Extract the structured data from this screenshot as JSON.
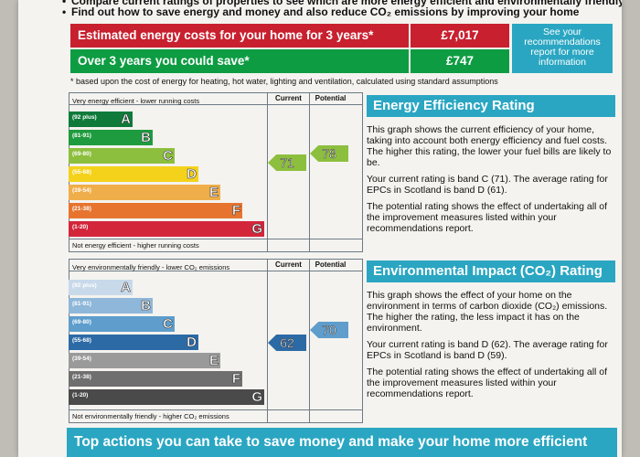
{
  "intro": {
    "line1": "Compare current ratings of properties to see which are more energy efficient and environmentally friendly",
    "line2": "Find out how to save energy and money and also reduce CO₂ emissions by improving your home"
  },
  "costs": {
    "estimated_label": "Estimated energy costs for your home for 3 years*",
    "estimated_value": "£7,017",
    "save_label": "Over 3 years you could save*",
    "save_value": "£747",
    "see_recommendations": "See your recommendations report for more information",
    "footnote": "* based upon the cost of energy for heating, hot water, lighting and ventilation, calculated using standard assumptions"
  },
  "energy_chart": {
    "top_label": "Very energy efficient - lower running costs",
    "bottom_label": "Not energy efficient - higher running costs",
    "current_header": "Current",
    "potential_header": "Potential",
    "bands": [
      {
        "range": "(92 plus)",
        "letter": "A",
        "color": "#0f7a3a"
      },
      {
        "range": "(81-91)",
        "letter": "B",
        "color": "#1f9b3f"
      },
      {
        "range": "(69-80)",
        "letter": "C",
        "color": "#8dbf3e"
      },
      {
        "range": "(55-68)",
        "letter": "D",
        "color": "#f4d21b"
      },
      {
        "range": "(39-54)",
        "letter": "E",
        "color": "#f0ae4a"
      },
      {
        "range": "(21-38)",
        "letter": "F",
        "color": "#e7742e"
      },
      {
        "range": "(1-20)",
        "letter": "G",
        "color": "#d3263a"
      }
    ],
    "current": "71",
    "potential": "78",
    "current_color": "#8dbf3e",
    "potential_color": "#8dbf3e"
  },
  "env_chart": {
    "top_label": "Very environmentally friendly - lower CO₂ emissions",
    "bottom_label": "Not environmentally friendly - higher CO₂ emissions",
    "current_header": "Current",
    "potential_header": "Potential",
    "bands": [
      {
        "range": "(92 plus)",
        "letter": "A",
        "color": "#c8d9ea"
      },
      {
        "range": "(81-91)",
        "letter": "B",
        "color": "#8fb7d9"
      },
      {
        "range": "(69-80)",
        "letter": "C",
        "color": "#5e9dcc"
      },
      {
        "range": "(55-68)",
        "letter": "D",
        "color": "#2c6aa6"
      },
      {
        "range": "(39-54)",
        "letter": "E",
        "color": "#9a9a9a"
      },
      {
        "range": "(21-38)",
        "letter": "F",
        "color": "#6f6f6f"
      },
      {
        "range": "(1-20)",
        "letter": "G",
        "color": "#4a4a4a"
      }
    ],
    "current": "62",
    "potential": "70",
    "current_color": "#2c6aa6",
    "potential_color": "#5e9dcc"
  },
  "eer_panel": {
    "title": "Energy Efficiency Rating",
    "p1": "This graph shows the current efficiency of your home, taking into account both energy efficiency and fuel costs. The higher this rating, the lower your fuel bills are likely to be.",
    "p2": "Your current rating is band C (71). The average rating for EPCs in Scotland is band D (61).",
    "p3": "The potential rating shows the effect of undertaking all of the improvement measures listed within your recommendations report."
  },
  "eir_panel": {
    "title": "Environmental Impact (CO₂) Rating",
    "p1": "This graph shows the effect of your home on the environment in terms of carbon dioxide (CO₂) emissions. The higher the rating, the less impact it has on the environment.",
    "p2": "Your current rating is band D (62). The average rating for EPCs in Scotland is band D (59).",
    "p3": "The potential rating shows the effect of undertaking all of the improvement measures listed within your recommendations report."
  },
  "footer": {
    "title": "Top actions you can take to save money and make your home more efficient"
  }
}
